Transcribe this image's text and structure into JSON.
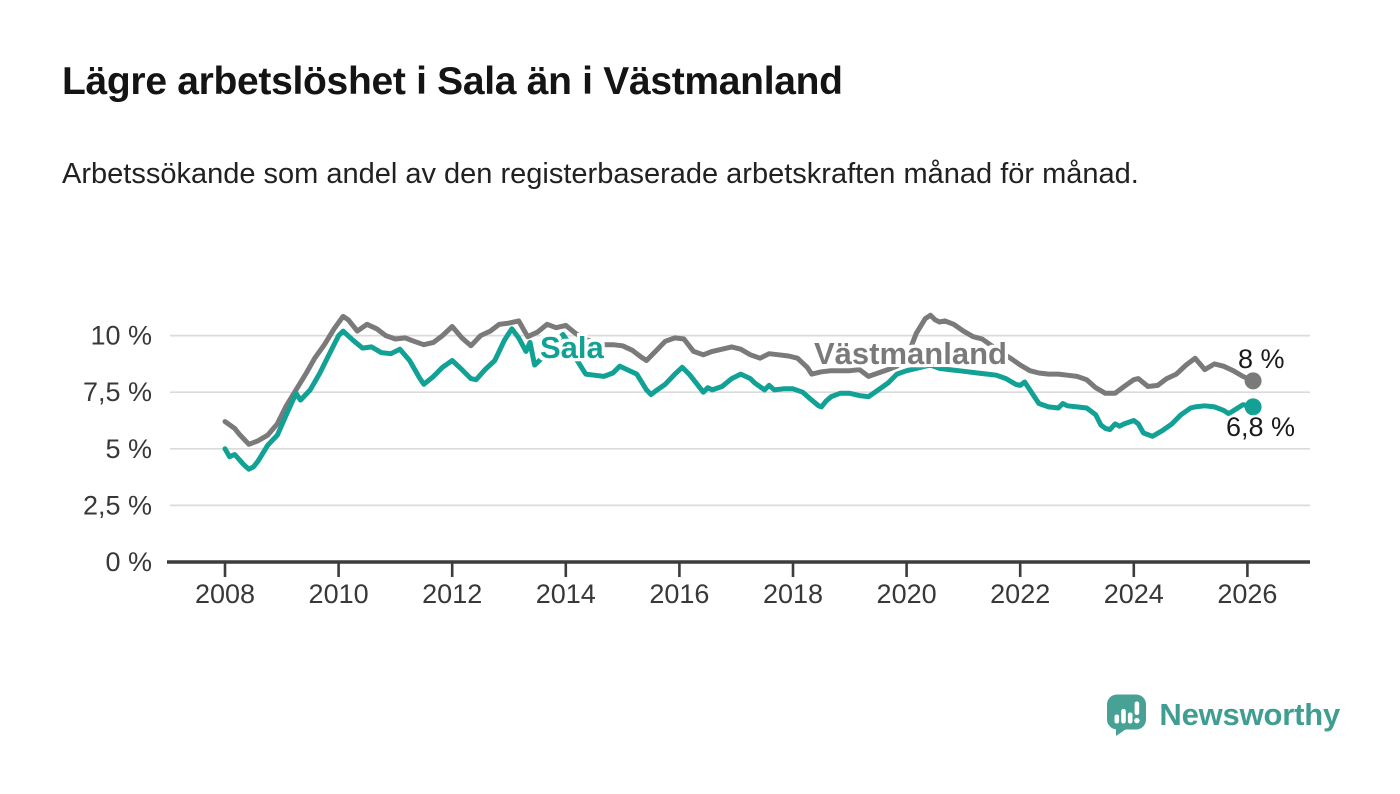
{
  "header": {
    "title": "Lägre arbetslöshet i Sala än i Västmanland",
    "subtitle": "Arbetssökande som andel av den registerbaserade arbetskraften månad för månad."
  },
  "footer": {
    "brand": "Newsworthy"
  },
  "colors": {
    "sala": "#12A195",
    "vastmanland": "#7a7a7a",
    "axis": "#3C3C3C",
    "grid": "#DBDBDB",
    "tick_text": "#383838",
    "logo_icon": "#48A195",
    "logo_text": "#3F9D91",
    "background": "#FFFFFF"
  },
  "chart_data": {
    "type": "line",
    "title": "Lägre arbetslöshet i Sala än i Västmanland",
    "subtitle": "Arbetssökande som andel av den registerbaserade arbetskraften månad för månad.",
    "unit": "%",
    "grid": true,
    "legend": "inline-labels",
    "x_axis": {
      "min": 2007.0,
      "max": 2027.1,
      "ticks": [
        2008,
        2010,
        2012,
        2014,
        2016,
        2018,
        2020,
        2022,
        2024,
        2026
      ]
    },
    "y_axis": {
      "min": 0,
      "max": 11.2,
      "ticks": [
        {
          "label": "10 %",
          "value": 10
        },
        {
          "label": "7,5 %",
          "value": 7.5
        },
        {
          "label": "5 %",
          "value": 5
        },
        {
          "label": "2,5 %",
          "value": 2.5
        },
        {
          "label": "0 %",
          "value": 0
        }
      ]
    },
    "series": [
      {
        "name": "Sala",
        "slug": "sala",
        "color": "#12A195",
        "end_label": "6,8 %",
        "end_value": 6.8,
        "points": [
          [
            2008.0,
            5.0
          ],
          [
            2008.08,
            4.65
          ],
          [
            2008.17,
            4.75
          ],
          [
            2008.33,
            4.3
          ],
          [
            2008.42,
            4.1
          ],
          [
            2008.5,
            4.2
          ],
          [
            2008.58,
            4.45
          ],
          [
            2008.75,
            5.15
          ],
          [
            2008.92,
            5.6
          ],
          [
            2009.08,
            6.5
          ],
          [
            2009.25,
            7.45
          ],
          [
            2009.33,
            7.15
          ],
          [
            2009.5,
            7.6
          ],
          [
            2009.67,
            8.35
          ],
          [
            2009.83,
            9.15
          ],
          [
            2010.0,
            10.0
          ],
          [
            2010.08,
            10.2
          ],
          [
            2010.25,
            9.8
          ],
          [
            2010.42,
            9.45
          ],
          [
            2010.58,
            9.5
          ],
          [
            2010.75,
            9.25
          ],
          [
            2010.92,
            9.2
          ],
          [
            2011.08,
            9.4
          ],
          [
            2011.25,
            8.9
          ],
          [
            2011.42,
            8.15
          ],
          [
            2011.5,
            7.85
          ],
          [
            2011.67,
            8.2
          ],
          [
            2011.83,
            8.6
          ],
          [
            2012.0,
            8.9
          ],
          [
            2012.17,
            8.5
          ],
          [
            2012.33,
            8.1
          ],
          [
            2012.42,
            8.05
          ],
          [
            2012.58,
            8.5
          ],
          [
            2012.75,
            8.9
          ],
          [
            2012.92,
            9.8
          ],
          [
            2013.05,
            10.3
          ],
          [
            2013.17,
            9.9
          ],
          [
            2013.3,
            9.3
          ],
          [
            2013.37,
            9.7
          ],
          [
            2013.45,
            8.7
          ],
          [
            2013.58,
            9.0
          ],
          [
            2013.75,
            9.5
          ],
          [
            2013.95,
            10.05
          ],
          [
            2014.1,
            9.5
          ],
          [
            2014.2,
            8.9
          ],
          [
            2014.35,
            8.3
          ],
          [
            2014.5,
            8.25
          ],
          [
            2014.67,
            8.2
          ],
          [
            2014.83,
            8.35
          ],
          [
            2014.95,
            8.65
          ],
          [
            2015.08,
            8.5
          ],
          [
            2015.25,
            8.3
          ],
          [
            2015.42,
            7.6
          ],
          [
            2015.5,
            7.4
          ],
          [
            2015.58,
            7.55
          ],
          [
            2015.75,
            7.85
          ],
          [
            2015.92,
            8.3
          ],
          [
            2016.05,
            8.6
          ],
          [
            2016.17,
            8.3
          ],
          [
            2016.33,
            7.8
          ],
          [
            2016.42,
            7.5
          ],
          [
            2016.5,
            7.7
          ],
          [
            2016.58,
            7.6
          ],
          [
            2016.75,
            7.75
          ],
          [
            2016.92,
            8.1
          ],
          [
            2017.08,
            8.3
          ],
          [
            2017.25,
            8.1
          ],
          [
            2017.33,
            7.9
          ],
          [
            2017.5,
            7.6
          ],
          [
            2017.58,
            7.8
          ],
          [
            2017.67,
            7.6
          ],
          [
            2017.83,
            7.65
          ],
          [
            2018.0,
            7.65
          ],
          [
            2018.17,
            7.5
          ],
          [
            2018.33,
            7.15
          ],
          [
            2018.45,
            6.9
          ],
          [
            2018.5,
            6.85
          ],
          [
            2018.58,
            7.1
          ],
          [
            2018.67,
            7.3
          ],
          [
            2018.83,
            7.45
          ],
          [
            2019.0,
            7.45
          ],
          [
            2019.17,
            7.35
          ],
          [
            2019.33,
            7.3
          ],
          [
            2019.5,
            7.6
          ],
          [
            2019.67,
            7.9
          ],
          [
            2019.83,
            8.3
          ],
          [
            2020.0,
            8.45
          ],
          [
            2020.25,
            8.6
          ],
          [
            2020.42,
            8.7
          ],
          [
            2020.58,
            8.55
          ],
          [
            2020.75,
            8.5
          ],
          [
            2020.92,
            8.45
          ],
          [
            2021.08,
            8.4
          ],
          [
            2021.25,
            8.35
          ],
          [
            2021.42,
            8.3
          ],
          [
            2021.58,
            8.25
          ],
          [
            2021.75,
            8.1
          ],
          [
            2021.92,
            7.85
          ],
          [
            2022.0,
            7.8
          ],
          [
            2022.08,
            7.95
          ],
          [
            2022.25,
            7.3
          ],
          [
            2022.33,
            7.0
          ],
          [
            2022.5,
            6.85
          ],
          [
            2022.67,
            6.8
          ],
          [
            2022.75,
            7.0
          ],
          [
            2022.83,
            6.9
          ],
          [
            2023.0,
            6.85
          ],
          [
            2023.17,
            6.8
          ],
          [
            2023.33,
            6.5
          ],
          [
            2023.42,
            6.05
          ],
          [
            2023.5,
            5.9
          ],
          [
            2023.58,
            5.85
          ],
          [
            2023.67,
            6.1
          ],
          [
            2023.75,
            6.0
          ],
          [
            2023.83,
            6.1
          ],
          [
            2024.0,
            6.25
          ],
          [
            2024.08,
            6.1
          ],
          [
            2024.17,
            5.7
          ],
          [
            2024.33,
            5.55
          ],
          [
            2024.5,
            5.8
          ],
          [
            2024.67,
            6.1
          ],
          [
            2024.83,
            6.5
          ],
          [
            2025.0,
            6.8
          ],
          [
            2025.08,
            6.85
          ],
          [
            2025.25,
            6.9
          ],
          [
            2025.42,
            6.85
          ],
          [
            2025.58,
            6.7
          ],
          [
            2025.67,
            6.55
          ],
          [
            2025.83,
            6.8
          ],
          [
            2025.92,
            6.95
          ],
          [
            2026.1,
            6.85
          ]
        ]
      },
      {
        "name": "Västmanland",
        "slug": "vastmanland",
        "color": "#7a7a7a",
        "end_label": "8 %",
        "end_value": 8.0,
        "points": [
          [
            2008.0,
            6.2
          ],
          [
            2008.17,
            5.9
          ],
          [
            2008.25,
            5.65
          ],
          [
            2008.42,
            5.2
          ],
          [
            2008.58,
            5.35
          ],
          [
            2008.75,
            5.6
          ],
          [
            2008.92,
            6.1
          ],
          [
            2009.08,
            6.9
          ],
          [
            2009.25,
            7.6
          ],
          [
            2009.42,
            8.3
          ],
          [
            2009.58,
            9.0
          ],
          [
            2009.75,
            9.6
          ],
          [
            2009.92,
            10.3
          ],
          [
            2010.08,
            10.85
          ],
          [
            2010.17,
            10.7
          ],
          [
            2010.33,
            10.2
          ],
          [
            2010.5,
            10.5
          ],
          [
            2010.67,
            10.3
          ],
          [
            2010.83,
            10.0
          ],
          [
            2011.0,
            9.85
          ],
          [
            2011.17,
            9.9
          ],
          [
            2011.33,
            9.75
          ],
          [
            2011.5,
            9.6
          ],
          [
            2011.67,
            9.7
          ],
          [
            2011.83,
            10.0
          ],
          [
            2012.0,
            10.4
          ],
          [
            2012.17,
            9.9
          ],
          [
            2012.33,
            9.55
          ],
          [
            2012.5,
            10.0
          ],
          [
            2012.67,
            10.2
          ],
          [
            2012.83,
            10.5
          ],
          [
            2013.0,
            10.55
          ],
          [
            2013.17,
            10.65
          ],
          [
            2013.33,
            9.95
          ],
          [
            2013.5,
            10.15
          ],
          [
            2013.67,
            10.5
          ],
          [
            2013.83,
            10.35
          ],
          [
            2014.0,
            10.45
          ],
          [
            2014.17,
            10.1
          ],
          [
            2014.33,
            9.85
          ],
          [
            2014.5,
            9.7
          ],
          [
            2014.67,
            9.6
          ],
          [
            2014.83,
            9.6
          ],
          [
            2015.0,
            9.55
          ],
          [
            2015.17,
            9.35
          ],
          [
            2015.33,
            9.05
          ],
          [
            2015.42,
            8.9
          ],
          [
            2015.58,
            9.3
          ],
          [
            2015.75,
            9.75
          ],
          [
            2015.92,
            9.9
          ],
          [
            2016.08,
            9.85
          ],
          [
            2016.25,
            9.3
          ],
          [
            2016.42,
            9.15
          ],
          [
            2016.58,
            9.3
          ],
          [
            2016.75,
            9.4
          ],
          [
            2016.92,
            9.5
          ],
          [
            2017.08,
            9.4
          ],
          [
            2017.25,
            9.15
          ],
          [
            2017.42,
            9.0
          ],
          [
            2017.58,
            9.2
          ],
          [
            2017.75,
            9.15
          ],
          [
            2017.92,
            9.1
          ],
          [
            2018.08,
            9.0
          ],
          [
            2018.25,
            8.6
          ],
          [
            2018.33,
            8.3
          ],
          [
            2018.5,
            8.4
          ],
          [
            2018.67,
            8.45
          ],
          [
            2018.83,
            8.45
          ],
          [
            2019.0,
            8.45
          ],
          [
            2019.17,
            8.5
          ],
          [
            2019.33,
            8.2
          ],
          [
            2019.5,
            8.35
          ],
          [
            2019.67,
            8.5
          ],
          [
            2019.83,
            8.65
          ],
          [
            2020.0,
            9.0
          ],
          [
            2020.17,
            10.1
          ],
          [
            2020.33,
            10.75
          ],
          [
            2020.42,
            10.9
          ],
          [
            2020.5,
            10.7
          ],
          [
            2020.58,
            10.6
          ],
          [
            2020.67,
            10.65
          ],
          [
            2020.83,
            10.5
          ],
          [
            2021.0,
            10.2
          ],
          [
            2021.17,
            9.95
          ],
          [
            2021.33,
            9.85
          ],
          [
            2021.5,
            9.55
          ],
          [
            2021.67,
            9.25
          ],
          [
            2021.83,
            9.0
          ],
          [
            2022.0,
            8.7
          ],
          [
            2022.17,
            8.45
          ],
          [
            2022.33,
            8.35
          ],
          [
            2022.5,
            8.3
          ],
          [
            2022.67,
            8.3
          ],
          [
            2022.83,
            8.25
          ],
          [
            2023.0,
            8.2
          ],
          [
            2023.17,
            8.05
          ],
          [
            2023.33,
            7.7
          ],
          [
            2023.5,
            7.45
          ],
          [
            2023.67,
            7.45
          ],
          [
            2023.83,
            7.75
          ],
          [
            2024.0,
            8.05
          ],
          [
            2024.08,
            8.1
          ],
          [
            2024.25,
            7.75
          ],
          [
            2024.42,
            7.8
          ],
          [
            2024.58,
            8.1
          ],
          [
            2024.75,
            8.3
          ],
          [
            2024.92,
            8.7
          ],
          [
            2025.08,
            9.0
          ],
          [
            2025.25,
            8.5
          ],
          [
            2025.42,
            8.75
          ],
          [
            2025.58,
            8.65
          ],
          [
            2025.75,
            8.45
          ],
          [
            2025.92,
            8.2
          ],
          [
            2026.1,
            8.0
          ]
        ]
      }
    ]
  }
}
